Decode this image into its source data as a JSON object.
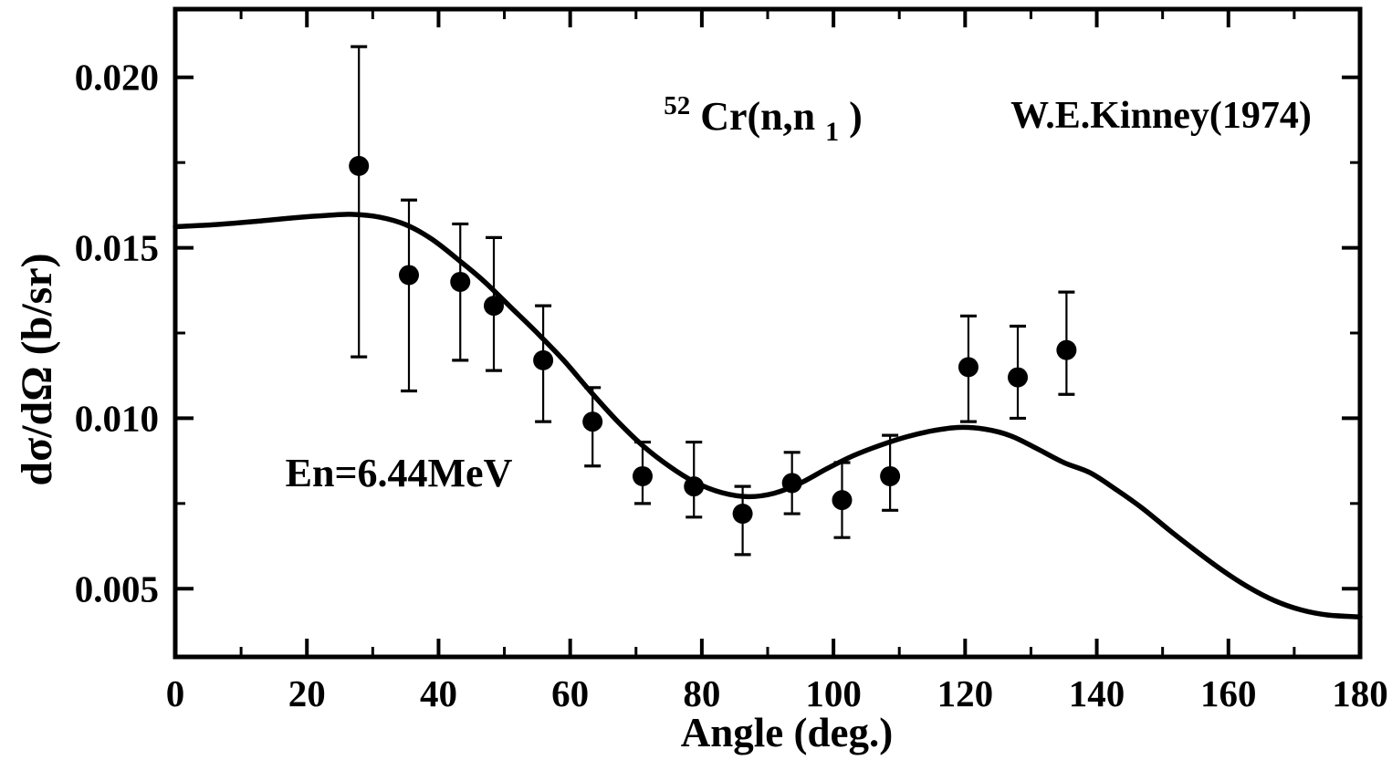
{
  "figure": {
    "reaction": {
      "mass_superscript": "52",
      "body": "Cr(n,n",
      "level_subscript": "1",
      "close_paren": ")"
    },
    "reference_label": "W.E.Kinney(1974)",
    "energy_label": "En=6.44MeV",
    "x_axis_title": "Angle (deg.)",
    "y_axis_title": "dσ/dΩ (b/sr)"
  },
  "colors": {
    "foreground": "#000000",
    "background": "#ffffff"
  },
  "chart_data": {
    "type": "scatter",
    "title": "52Cr(n,n1)",
    "annotation": "En=6.44MeV",
    "legend_entries": [
      "W.E.Kinney(1974)"
    ],
    "xlabel": "Angle (deg.)",
    "ylabel": "dσ/dΩ (b/sr)",
    "xlim": [
      0,
      180
    ],
    "ylim": [
      0.003,
      0.022
    ],
    "grid": false,
    "x_major_ticks": [
      0,
      20,
      40,
      60,
      80,
      100,
      120,
      140,
      160,
      180
    ],
    "x_minor_ticks": [
      10,
      30,
      50,
      70,
      90,
      110,
      130,
      150,
      170
    ],
    "y_major_ticks": [
      0.005,
      0.01,
      0.015,
      0.02
    ],
    "y_major_tick_labels": [
      "0.005",
      "0.010",
      "0.015",
      "0.020"
    ],
    "y_minor_ticks": [
      0.0075,
      0.0125,
      0.0175
    ],
    "series": [
      {
        "name": "W.E.Kinney(1974)",
        "type": "scatter",
        "marker": "filled-circle",
        "color": "#000000",
        "points": [
          {
            "x": 27.9,
            "y": 0.0174,
            "y_err_hi": 0.0209,
            "y_err_lo": 0.0118
          },
          {
            "x": 35.5,
            "y": 0.0142,
            "y_err_hi": 0.0164,
            "y_err_lo": 0.0108
          },
          {
            "x": 43.3,
            "y": 0.014,
            "y_err_hi": 0.0157,
            "y_err_lo": 0.0117
          },
          {
            "x": 48.4,
            "y": 0.0133,
            "y_err_hi": 0.0153,
            "y_err_lo": 0.0114
          },
          {
            "x": 55.9,
            "y": 0.0117,
            "y_err_hi": 0.0133,
            "y_err_lo": 0.0099
          },
          {
            "x": 63.4,
            "y": 0.0099,
            "y_err_hi": 0.0109,
            "y_err_lo": 0.0086
          },
          {
            "x": 71.0,
            "y": 0.0083,
            "y_err_hi": 0.0093,
            "y_err_lo": 0.0075
          },
          {
            "x": 78.8,
            "y": 0.008,
            "y_err_hi": 0.0093,
            "y_err_lo": 0.0071
          },
          {
            "x": 86.2,
            "y": 0.0072,
            "y_err_hi": 0.008,
            "y_err_lo": 0.006
          },
          {
            "x": 93.7,
            "y": 0.0081,
            "y_err_hi": 0.009,
            "y_err_lo": 0.0072
          },
          {
            "x": 101.3,
            "y": 0.0076,
            "y_err_hi": 0.0087,
            "y_err_lo": 0.0065
          },
          {
            "x": 108.6,
            "y": 0.0083,
            "y_err_hi": 0.0095,
            "y_err_lo": 0.0073
          },
          {
            "x": 120.5,
            "y": 0.0115,
            "y_err_hi": 0.013,
            "y_err_lo": 0.0099
          },
          {
            "x": 128.0,
            "y": 0.0112,
            "y_err_hi": 0.0127,
            "y_err_lo": 0.01
          },
          {
            "x": 135.4,
            "y": 0.012,
            "y_err_hi": 0.0137,
            "y_err_lo": 0.0107
          }
        ]
      },
      {
        "name": "model-curve",
        "type": "line",
        "color": "#000000",
        "points": [
          [
            0,
            0.01562
          ],
          [
            6,
            0.01568
          ],
          [
            12,
            0.01577
          ],
          [
            18,
            0.01588
          ],
          [
            23,
            0.01595
          ],
          [
            27,
            0.01598
          ],
          [
            31,
            0.0159
          ],
          [
            35,
            0.01568
          ],
          [
            39,
            0.01525
          ],
          [
            43,
            0.01465
          ],
          [
            47,
            0.014
          ],
          [
            51,
            0.01325
          ],
          [
            55,
            0.0125
          ],
          [
            59,
            0.0117
          ],
          [
            63,
            0.0108
          ],
          [
            67,
            0.00995
          ],
          [
            71,
            0.0092
          ],
          [
            75,
            0.0086
          ],
          [
            79,
            0.00812
          ],
          [
            83,
            0.00782
          ],
          [
            87,
            0.0077
          ],
          [
            91,
            0.0078
          ],
          [
            95,
            0.0081
          ],
          [
            99,
            0.00852
          ],
          [
            103,
            0.0089
          ],
          [
            107,
            0.0092
          ],
          [
            111,
            0.00945
          ],
          [
            115,
            0.00963
          ],
          [
            119,
            0.00973
          ],
          [
            123,
            0.00968
          ],
          [
            127,
            0.00948
          ],
          [
            131,
            0.0091
          ],
          [
            135,
            0.0087
          ],
          [
            139,
            0.0084
          ],
          [
            143,
            0.0079
          ],
          [
            147,
            0.00735
          ],
          [
            151,
            0.00672
          ],
          [
            155,
            0.00612
          ],
          [
            159,
            0.00555
          ],
          [
            163,
            0.00505
          ],
          [
            167,
            0.00465
          ],
          [
            171,
            0.00438
          ],
          [
            175,
            0.00423
          ],
          [
            180,
            0.00417
          ]
        ]
      }
    ]
  }
}
